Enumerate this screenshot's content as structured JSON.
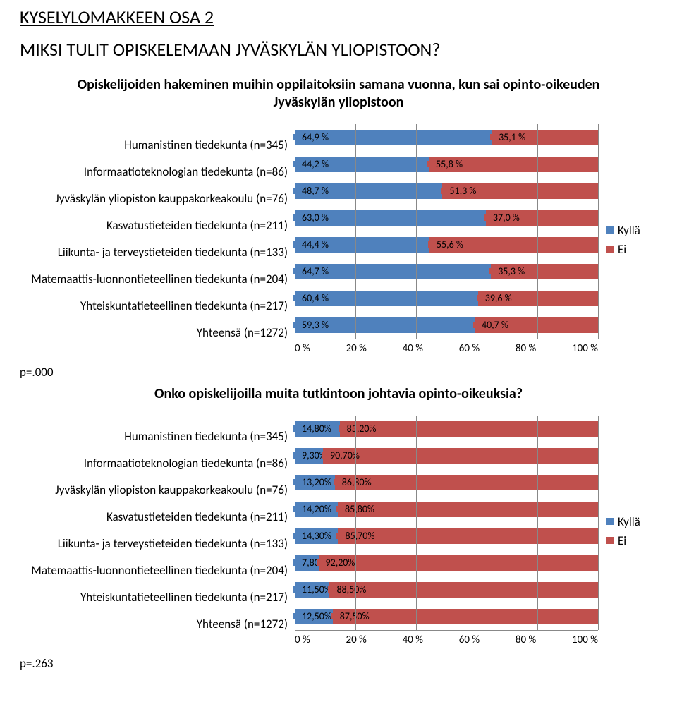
{
  "headings": {
    "section": "KYSELYLOMAKKEEN OSA 2",
    "question": "MIKSI TULIT OPISKELEMAAN JYVÄSKYLÄN YLIOPISTOON?"
  },
  "colors": {
    "kylla": "#4f81bd",
    "ei": "#c0504d",
    "grid": "#888888",
    "bg": "#ffffff",
    "text": "#000000"
  },
  "chart1": {
    "title": "Opiskelijoiden hakeminen muihin oppilaitoksiin samana vuonna, kun sai opinto-oikeuden Jyväskylän yliopistoon",
    "legend": {
      "kylla": "Kyllä",
      "ei": "Ei"
    },
    "xticks": [
      "0 %",
      "20 %",
      "40 %",
      "60 %",
      "80 %",
      "100 %"
    ],
    "pvalue": "p=.000",
    "rows": [
      {
        "label": "Humanistinen tiedekunta (n=345)",
        "a": 64.9,
        "b": 35.1,
        "al": "64,9 %",
        "bl": "35,1 %"
      },
      {
        "label": "Informaatioteknologian tiedekunta (n=86)",
        "a": 44.2,
        "b": 55.8,
        "al": "44,2 %",
        "bl": "55,8 %"
      },
      {
        "label": "Jyväskylän yliopiston kauppakorkeakoulu (n=76)",
        "a": 48.7,
        "b": 51.3,
        "al": "48,7 %",
        "bl": "51,3 %"
      },
      {
        "label": "Kasvatustieteiden tiedekunta (n=211)",
        "a": 63.0,
        "b": 37.0,
        "al": "63,0 %",
        "bl": "37,0 %"
      },
      {
        "label": "Liikunta- ja terveystieteiden tiedekunta (n=133)",
        "a": 44.4,
        "b": 55.6,
        "al": "44,4 %",
        "bl": "55,6 %"
      },
      {
        "label": "Matemaattis-luonnontieteellinen tiedekunta (n=204)",
        "a": 64.7,
        "b": 35.3,
        "al": "64,7 %",
        "bl": "35,3 %"
      },
      {
        "label": "Yhteiskuntatieteellinen tiedekunta (n=217)",
        "a": 60.4,
        "b": 39.6,
        "al": "60,4 %",
        "bl": "39,6 %"
      },
      {
        "label": "Yhteensä (n=1272)",
        "a": 59.3,
        "b": 40.7,
        "al": "59,3 %",
        "bl": "40,7 %"
      }
    ]
  },
  "chart2": {
    "title": "Onko opiskelijoilla muita tutkintoon johtavia opinto-oikeuksia?",
    "legend": {
      "kylla": "Kyllä",
      "ei": "Ei"
    },
    "xticks": [
      "0 %",
      "20 %",
      "40 %",
      "60 %",
      "80 %",
      "100 %"
    ],
    "pvalue": "p=.263",
    "rows": [
      {
        "label": "Humanistinen tiedekunta (n=345)",
        "a": 14.8,
        "b": 85.2,
        "al": "14,80%",
        "bl": "85,20%"
      },
      {
        "label": "Informaatioteknologian tiedekunta (n=86)",
        "a": 9.3,
        "b": 90.7,
        "al": "9,30%",
        "bl": "90,70%"
      },
      {
        "label": "Jyväskylän yliopiston kauppakorkeakoulu (n=76)",
        "a": 13.2,
        "b": 86.8,
        "al": "13,20%",
        "bl": "86,80%"
      },
      {
        "label": "Kasvatustieteiden tiedekunta (n=211)",
        "a": 14.2,
        "b": 85.8,
        "al": "14,20%",
        "bl": "85,80%"
      },
      {
        "label": "Liikunta- ja terveystieteiden tiedekunta (n=133)",
        "a": 14.3,
        "b": 85.7,
        "al": "14,30%",
        "bl": "85,70%"
      },
      {
        "label": "Matemaattis-luonnontieteellinen tiedekunta (n=204)",
        "a": 7.8,
        "b": 92.2,
        "al": "7,80%",
        "bl": "92,20%"
      },
      {
        "label": "Yhteiskuntatieteellinen tiedekunta (n=217)",
        "a": 11.5,
        "b": 88.5,
        "al": "11,50%",
        "bl": "88,50%"
      },
      {
        "label": "Yhteensä (n=1272)",
        "a": 12.5,
        "b": 87.5,
        "al": "12,50%",
        "bl": "87,50%"
      }
    ]
  }
}
